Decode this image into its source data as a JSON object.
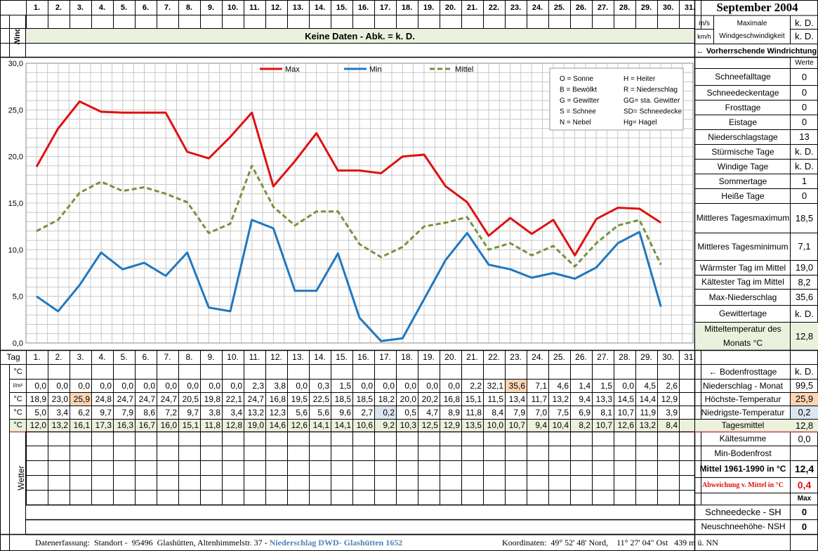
{
  "month_title": "September 2004",
  "days": [
    "1.",
    "2.",
    "3.",
    "4.",
    "5.",
    "6.",
    "7.",
    "8.",
    "9.",
    "10.",
    "11.",
    "12.",
    "13.",
    "14.",
    "15.",
    "16.",
    "17.",
    "18.",
    "19.",
    "20.",
    "21.",
    "22.",
    "23.",
    "24.",
    "25.",
    "26.",
    "27.",
    "28.",
    "29.",
    "30.",
    "31."
  ],
  "wind": {
    "section_label": "Wind",
    "no_data_banner": "Keine Daten - Abk. = k. D.",
    "unit_ms": "m/s",
    "unit_kmh": "km/h",
    "max_label_line1": "Maximale",
    "max_label_line2": "Windgeschwindigkeit",
    "value_ms": "k. D.",
    "value_kmh": "k. D.",
    "direction_label": "← Vorherrschende Windrichtung"
  },
  "chart_data": {
    "type": "line",
    "x": [
      1,
      2,
      3,
      4,
      5,
      6,
      7,
      8,
      9,
      10,
      11,
      12,
      13,
      14,
      15,
      16,
      17,
      18,
      19,
      20,
      21,
      22,
      23,
      24,
      25,
      26,
      27,
      28,
      29,
      30
    ],
    "ylim": [
      0,
      30
    ],
    "yticks": [
      "0,0",
      "5,0",
      "10,0",
      "15,0",
      "20,0",
      "25,0",
      "30,0"
    ],
    "grid": true,
    "legend_position": "top",
    "series": [
      {
        "name": "Max",
        "color": "#e01010",
        "dash": "solid",
        "values": [
          18.9,
          23.0,
          25.9,
          24.8,
          24.7,
          24.7,
          24.7,
          20.5,
          19.8,
          22.1,
          24.7,
          16.8,
          19.5,
          22.5,
          18.5,
          18.5,
          18.2,
          20.0,
          20.2,
          16.8,
          15.1,
          11.5,
          13.4,
          11.7,
          13.2,
          9.4,
          13.3,
          14.5,
          14.4,
          12.9
        ]
      },
      {
        "name": "Min",
        "color": "#1f78c0",
        "dash": "solid",
        "values": [
          5.0,
          3.4,
          6.2,
          9.7,
          7.9,
          8.6,
          7.2,
          9.7,
          3.8,
          3.4,
          13.2,
          12.3,
          5.6,
          5.6,
          9.6,
          2.7,
          0.2,
          0.5,
          4.7,
          8.9,
          11.8,
          8.4,
          7.9,
          7.0,
          7.5,
          6.9,
          8.1,
          10.7,
          11.9,
          3.9
        ]
      },
      {
        "name": "Mittel",
        "color": "#76923c",
        "dash": "dashed",
        "values": [
          12.0,
          13.2,
          16.1,
          17.3,
          16.3,
          16.7,
          16.0,
          15.1,
          11.8,
          12.8,
          19.0,
          14.6,
          12.6,
          14.1,
          14.1,
          10.6,
          9.2,
          10.3,
          12.5,
          12.9,
          13.5,
          10.0,
          10.7,
          9.4,
          10.4,
          8.2,
          10.7,
          12.6,
          13.2,
          8.4
        ]
      }
    ],
    "key": [
      [
        "O = Sonne",
        "H = Heiter"
      ],
      [
        "B = Bewölkt",
        "R = Niederschlag"
      ],
      [
        "G = Gewitter",
        "GG= sta. Gewitter"
      ],
      [
        "S = Schnee",
        "SD= Schneedecke"
      ],
      [
        "N = Nebel",
        "Hg= Hagel"
      ]
    ]
  },
  "stats": {
    "header": "Werte",
    "rows": [
      {
        "label": "Schneefalltage",
        "value": "0"
      },
      {
        "label": "Schneedeckentage",
        "value": "0"
      },
      {
        "label": "Frosttage",
        "value": "0"
      },
      {
        "label": "Eistage",
        "value": "0"
      },
      {
        "label": "Niederschlagstage",
        "value": "13"
      },
      {
        "label": "Stürmische Tage",
        "value": "k. D."
      },
      {
        "label": "Windige Tage",
        "value": "k. D."
      },
      {
        "label": "Sommertage",
        "value": "1"
      },
      {
        "label": "Heiße Tage",
        "value": "0"
      },
      {
        "label": "Mittleres Tagesmaximum",
        "value": "18,5"
      },
      {
        "label": "Mittleres Tagesminimum",
        "value": "7,1"
      },
      {
        "label": "Wärmster Tag im Mittel",
        "value": "19,0"
      },
      {
        "label": "Kältester Tag im Mittel",
        "value": "8,2"
      },
      {
        "label": "Max-Niederschlag",
        "value": "35,6"
      },
      {
        "label": "Gewittertage",
        "value": "k. D."
      },
      {
        "label": "Mitteltemperatur des Monats °C",
        "value": "12,8"
      }
    ]
  },
  "table": {
    "tag_label": "Tag",
    "unit_c": "°C",
    "unit_lm2": "l/m²",
    "precip": [
      "0,0",
      "0,0",
      "0,0",
      "0,0",
      "0,0",
      "0,0",
      "0,0",
      "0,0",
      "0,0",
      "0,0",
      "2,3",
      "3,8",
      "0,0",
      "0,3",
      "1,5",
      "0,0",
      "0,0",
      "0,0",
      "0,0",
      "0,0",
      "2,2",
      "32,1",
      "35,6",
      "7,1",
      "4,6",
      "1,4",
      "1,5",
      "0,0",
      "4,5",
      "2,6"
    ],
    "tmax": [
      "18,9",
      "23,0",
      "25,9",
      "24,8",
      "24,7",
      "24,7",
      "24,7",
      "20,5",
      "19,8",
      "22,1",
      "24,7",
      "16,8",
      "19,5",
      "22,5",
      "18,5",
      "18,5",
      "18,2",
      "20,0",
      "20,2",
      "16,8",
      "15,1",
      "11,5",
      "13,4",
      "11,7",
      "13,2",
      "9,4",
      "13,3",
      "14,5",
      "14,4",
      "12,9"
    ],
    "tmin": [
      "5,0",
      "3,4",
      "6,2",
      "9,7",
      "7,9",
      "8,6",
      "7,2",
      "9,7",
      "3,8",
      "3,4",
      "13,2",
      "12,3",
      "5,6",
      "5,6",
      "9,6",
      "2,7",
      "0,2",
      "0,5",
      "4,7",
      "8,9",
      "11,8",
      "8,4",
      "7,9",
      "7,0",
      "7,5",
      "6,9",
      "8,1",
      "10,7",
      "11,9",
      "3,9"
    ],
    "tmean": [
      "12,0",
      "13,2",
      "16,1",
      "17,3",
      "16,3",
      "16,7",
      "16,0",
      "15,1",
      "11,8",
      "12,8",
      "19,0",
      "14,6",
      "12,6",
      "14,1",
      "14,1",
      "10,6",
      "9,2",
      "10,3",
      "12,5",
      "12,9",
      "13,5",
      "10,0",
      "10,7",
      "9,4",
      "10,4",
      "8,2",
      "10,7",
      "12,6",
      "13,2",
      "8,4"
    ],
    "highlight_max_day": 3,
    "highlight_precip_day": 23,
    "highlight_min_day": 17,
    "highlight_mean_day": 17
  },
  "summary": [
    {
      "label": "← Bodenfrosttage",
      "value": "k. D."
    },
    {
      "label": "Niederschlag - Monat",
      "value": "99,5"
    },
    {
      "label": "Höchste-Temperatur",
      "value": "25,9"
    },
    {
      "label": "Niedrigste-Temperatur",
      "value": "0,2"
    },
    {
      "label": "Tagesmittel",
      "value": "12,8"
    },
    {
      "label": "Kältesumme",
      "value": "0,0"
    },
    {
      "label": "Min-Bodenfrost",
      "value": ""
    },
    {
      "label": "Mittel 1961-1990 in °C",
      "value": "12,4"
    },
    {
      "label": "Abweichung v. Mittel in °C",
      "value": "0,4"
    },
    {
      "label": "",
      "value": "Max"
    }
  ],
  "weather": {
    "section_label": "Wetter",
    "snow_depth_label": "Schneedecke -  SH",
    "snow_depth_value": "0",
    "new_snow_label": "Neuschneehöhe- NSH",
    "new_snow_value": "0"
  },
  "footer": {
    "left": "Datenerfassung:  Standort -  95496  Glashütten, Altenhimmelstr. 37 - ",
    "left_highlight": "Niederschlag DWD- Glashütten 1652",
    "right": "Koordinaten:  49° 52' 48' Nord,    11° 27' 04\" Ost   439 m ü. NN"
  }
}
